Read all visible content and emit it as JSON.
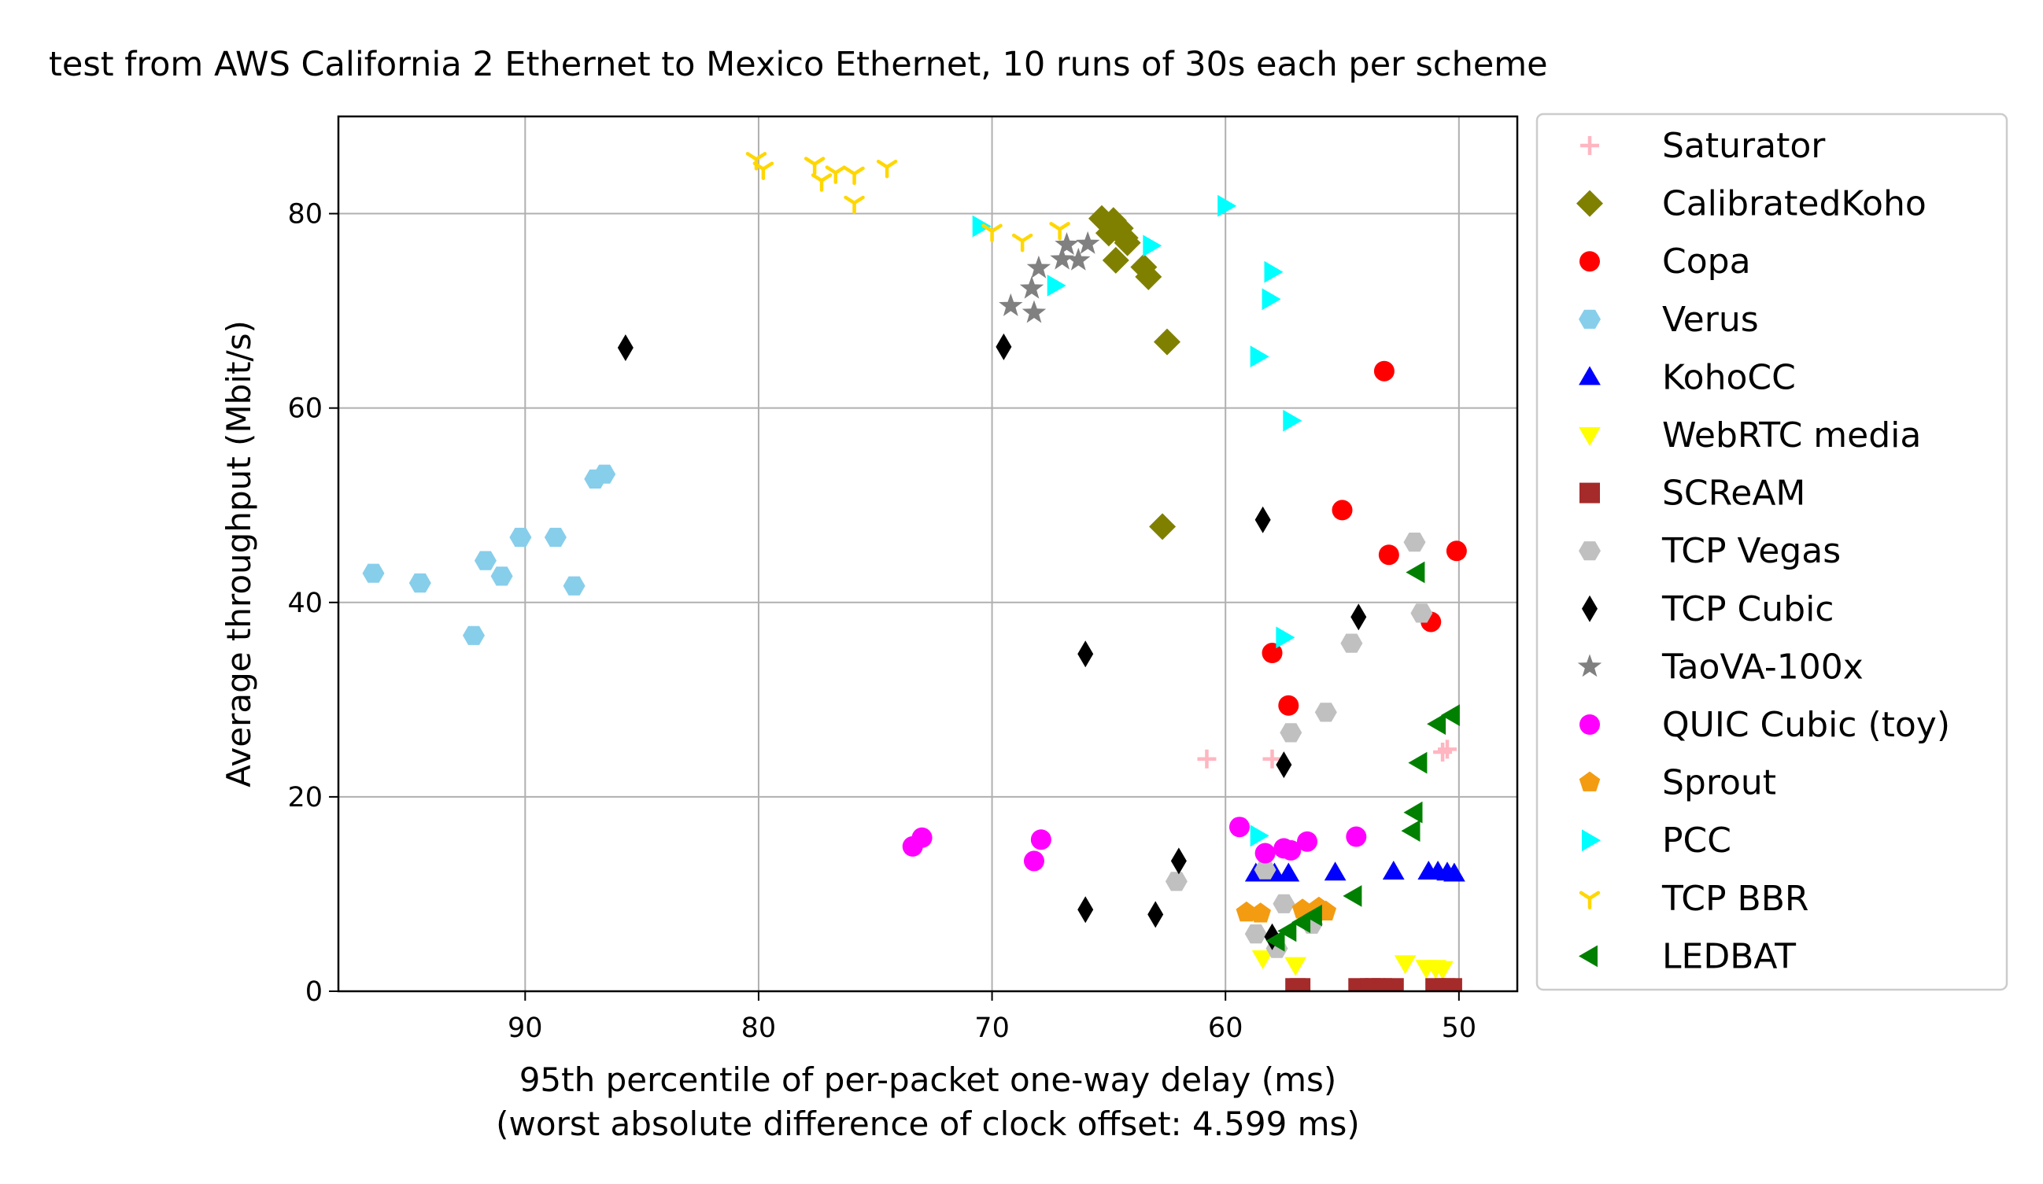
{
  "chart_data": {
    "type": "scatter",
    "title": "test from AWS California 2 Ethernet to Mexico Ethernet, 10 runs of 30s each per scheme",
    "xlabel": "95th percentile of per-packet one-way delay (ms)",
    "xlabel2": "(worst absolute difference of clock offset: 4.599 ms)",
    "ylabel": "Average throughput (Mbit/s)",
    "x_inverted": true,
    "xlim": [
      98,
      47.5
    ],
    "ylim": [
      0,
      90
    ],
    "xticks": [
      90,
      80,
      70,
      60,
      50
    ],
    "yticks": [
      0,
      20,
      40,
      60,
      80
    ],
    "grid": true,
    "legend_position": "outside-right",
    "series": [
      {
        "name": "Saturator",
        "marker": "plus",
        "color": "#ffb6c1",
        "points": [
          [
            60.8,
            23.9
          ],
          [
            58.0,
            23.9
          ],
          [
            50.7,
            24.6
          ],
          [
            50.5,
            24.9
          ]
        ]
      },
      {
        "name": "CalibratedKoho",
        "marker": "diamond",
        "color": "#808000",
        "points": [
          [
            65.3,
            79.5
          ],
          [
            64.8,
            79.3
          ],
          [
            65.0,
            78.0
          ],
          [
            64.5,
            78.5
          ],
          [
            64.3,
            77.5
          ],
          [
            64.2,
            77.0
          ],
          [
            64.7,
            75.2
          ],
          [
            63.5,
            74.5
          ],
          [
            63.3,
            73.5
          ],
          [
            62.5,
            66.8
          ],
          [
            62.7,
            47.8
          ]
        ]
      },
      {
        "name": "Copa",
        "marker": "circle",
        "color": "#ff0000",
        "points": [
          [
            53.2,
            63.8
          ],
          [
            55.0,
            49.5
          ],
          [
            53.0,
            44.9
          ],
          [
            50.1,
            45.3
          ],
          [
            51.2,
            38.0
          ],
          [
            58.0,
            34.8
          ],
          [
            57.3,
            29.4
          ]
        ]
      },
      {
        "name": "Verus",
        "marker": "hexagon",
        "color": "#87ceeb",
        "points": [
          [
            96.5,
            43.0
          ],
          [
            94.5,
            42.0
          ],
          [
            91.7,
            44.3
          ],
          [
            91.0,
            42.7
          ],
          [
            90.2,
            46.7
          ],
          [
            88.7,
            46.7
          ],
          [
            87.9,
            41.7
          ],
          [
            92.2,
            36.6
          ],
          [
            87.0,
            52.7
          ],
          [
            86.6,
            53.2
          ]
        ]
      },
      {
        "name": "KohoCC",
        "marker": "triangle-up",
        "color": "#0000ff",
        "points": [
          [
            58.7,
            12.1
          ],
          [
            57.9,
            12.1
          ],
          [
            57.3,
            12.1
          ],
          [
            55.3,
            12.2
          ],
          [
            52.8,
            12.3
          ],
          [
            51.3,
            12.3
          ],
          [
            50.9,
            12.3
          ],
          [
            50.5,
            12.2
          ],
          [
            50.2,
            12.1
          ]
        ]
      },
      {
        "name": "WebRTC media",
        "marker": "triangle-down",
        "color": "#ffff00",
        "points": [
          [
            58.4,
            3.4
          ],
          [
            57.0,
            2.7
          ],
          [
            52.3,
            2.9
          ],
          [
            51.4,
            2.4
          ],
          [
            51.0,
            2.4
          ],
          [
            50.7,
            2.3
          ]
        ]
      },
      {
        "name": "SCReAM",
        "marker": "square",
        "color": "#a52a2a",
        "points": [
          [
            57.0,
            0.3
          ],
          [
            56.8,
            0.3
          ],
          [
            54.3,
            0.3
          ],
          [
            53.8,
            0.3
          ],
          [
            53.6,
            0.3
          ],
          [
            53.3,
            0.3
          ],
          [
            52.8,
            0.3
          ],
          [
            51.0,
            0.3
          ],
          [
            50.6,
            0.3
          ],
          [
            50.3,
            0.3
          ]
        ]
      },
      {
        "name": "TCP Vegas",
        "marker": "hexagon",
        "color": "#c0c0c0",
        "points": [
          [
            51.9,
            46.2
          ],
          [
            51.6,
            38.9
          ],
          [
            54.6,
            35.8
          ],
          [
            55.7,
            28.7
          ],
          [
            57.2,
            26.6
          ],
          [
            58.3,
            12.5
          ],
          [
            62.1,
            11.3
          ],
          [
            58.7,
            5.9
          ],
          [
            57.8,
            4.4
          ],
          [
            56.3,
            6.9
          ],
          [
            57.5,
            9.0
          ]
        ]
      },
      {
        "name": "TCP Cubic",
        "marker": "thin-diamond",
        "color": "#000000",
        "points": [
          [
            85.7,
            66.2
          ],
          [
            69.5,
            66.3
          ],
          [
            58.4,
            48.5
          ],
          [
            54.3,
            38.5
          ],
          [
            66.0,
            34.7
          ],
          [
            57.5,
            23.3
          ],
          [
            62.0,
            13.4
          ],
          [
            66.0,
            8.4
          ],
          [
            63.0,
            7.9
          ],
          [
            58.0,
            5.6
          ]
        ]
      },
      {
        "name": "TaoVA-100x",
        "marker": "star",
        "color": "#808080",
        "points": [
          [
            69.2,
            70.5
          ],
          [
            68.2,
            69.8
          ],
          [
            68.3,
            72.3
          ],
          [
            68.0,
            74.4
          ],
          [
            67.0,
            75.3
          ],
          [
            66.8,
            76.8
          ],
          [
            66.3,
            75.2
          ],
          [
            65.9,
            76.9
          ]
        ]
      },
      {
        "name": "QUIC Cubic (toy)",
        "marker": "circle",
        "color": "#ff00ff",
        "points": [
          [
            73.4,
            14.9
          ],
          [
            73.0,
            15.8
          ],
          [
            68.2,
            13.4
          ],
          [
            67.9,
            15.6
          ],
          [
            59.4,
            16.9
          ],
          [
            58.3,
            14.2
          ],
          [
            57.5,
            14.7
          ],
          [
            57.2,
            14.5
          ],
          [
            56.5,
            15.4
          ],
          [
            54.4,
            15.9
          ]
        ]
      },
      {
        "name": "Sprout",
        "marker": "pentagon",
        "color": "#f39c12",
        "points": [
          [
            59.1,
            8.1
          ],
          [
            58.5,
            8.0
          ],
          [
            56.7,
            8.4
          ],
          [
            56.0,
            8.6
          ],
          [
            55.7,
            8.2
          ]
        ]
      },
      {
        "name": "PCC",
        "marker": "triangle-right",
        "color": "#00ffff",
        "points": [
          [
            70.5,
            78.7
          ],
          [
            60.0,
            80.8
          ],
          [
            63.2,
            76.7
          ],
          [
            67.3,
            72.6
          ],
          [
            58.0,
            74.0
          ],
          [
            58.1,
            71.2
          ],
          [
            58.6,
            65.3
          ],
          [
            57.2,
            58.7
          ],
          [
            57.5,
            36.4
          ],
          [
            58.6,
            16.0
          ]
        ]
      },
      {
        "name": "TCP BBR",
        "marker": "tri-down",
        "color": "#ffd700",
        "points": [
          [
            80.1,
            85.6
          ],
          [
            79.8,
            84.6
          ],
          [
            77.6,
            85.1
          ],
          [
            77.3,
            83.4
          ],
          [
            76.7,
            84.2
          ],
          [
            75.9,
            84.1
          ],
          [
            75.9,
            81.1
          ],
          [
            74.5,
            84.8
          ],
          [
            70.0,
            78.2
          ],
          [
            68.7,
            77.2
          ],
          [
            67.1,
            78.4
          ]
        ]
      },
      {
        "name": "LEDBAT",
        "marker": "triangle-left",
        "color": "#008000",
        "points": [
          [
            51.8,
            43.1
          ],
          [
            50.3,
            28.4
          ],
          [
            50.9,
            27.5
          ],
          [
            51.7,
            23.5
          ],
          [
            51.9,
            18.4
          ],
          [
            52.0,
            16.5
          ],
          [
            54.5,
            9.8
          ],
          [
            56.2,
            7.8
          ],
          [
            56.7,
            7.1
          ],
          [
            57.3,
            6.2
          ],
          [
            57.8,
            5.2
          ]
        ]
      }
    ]
  }
}
